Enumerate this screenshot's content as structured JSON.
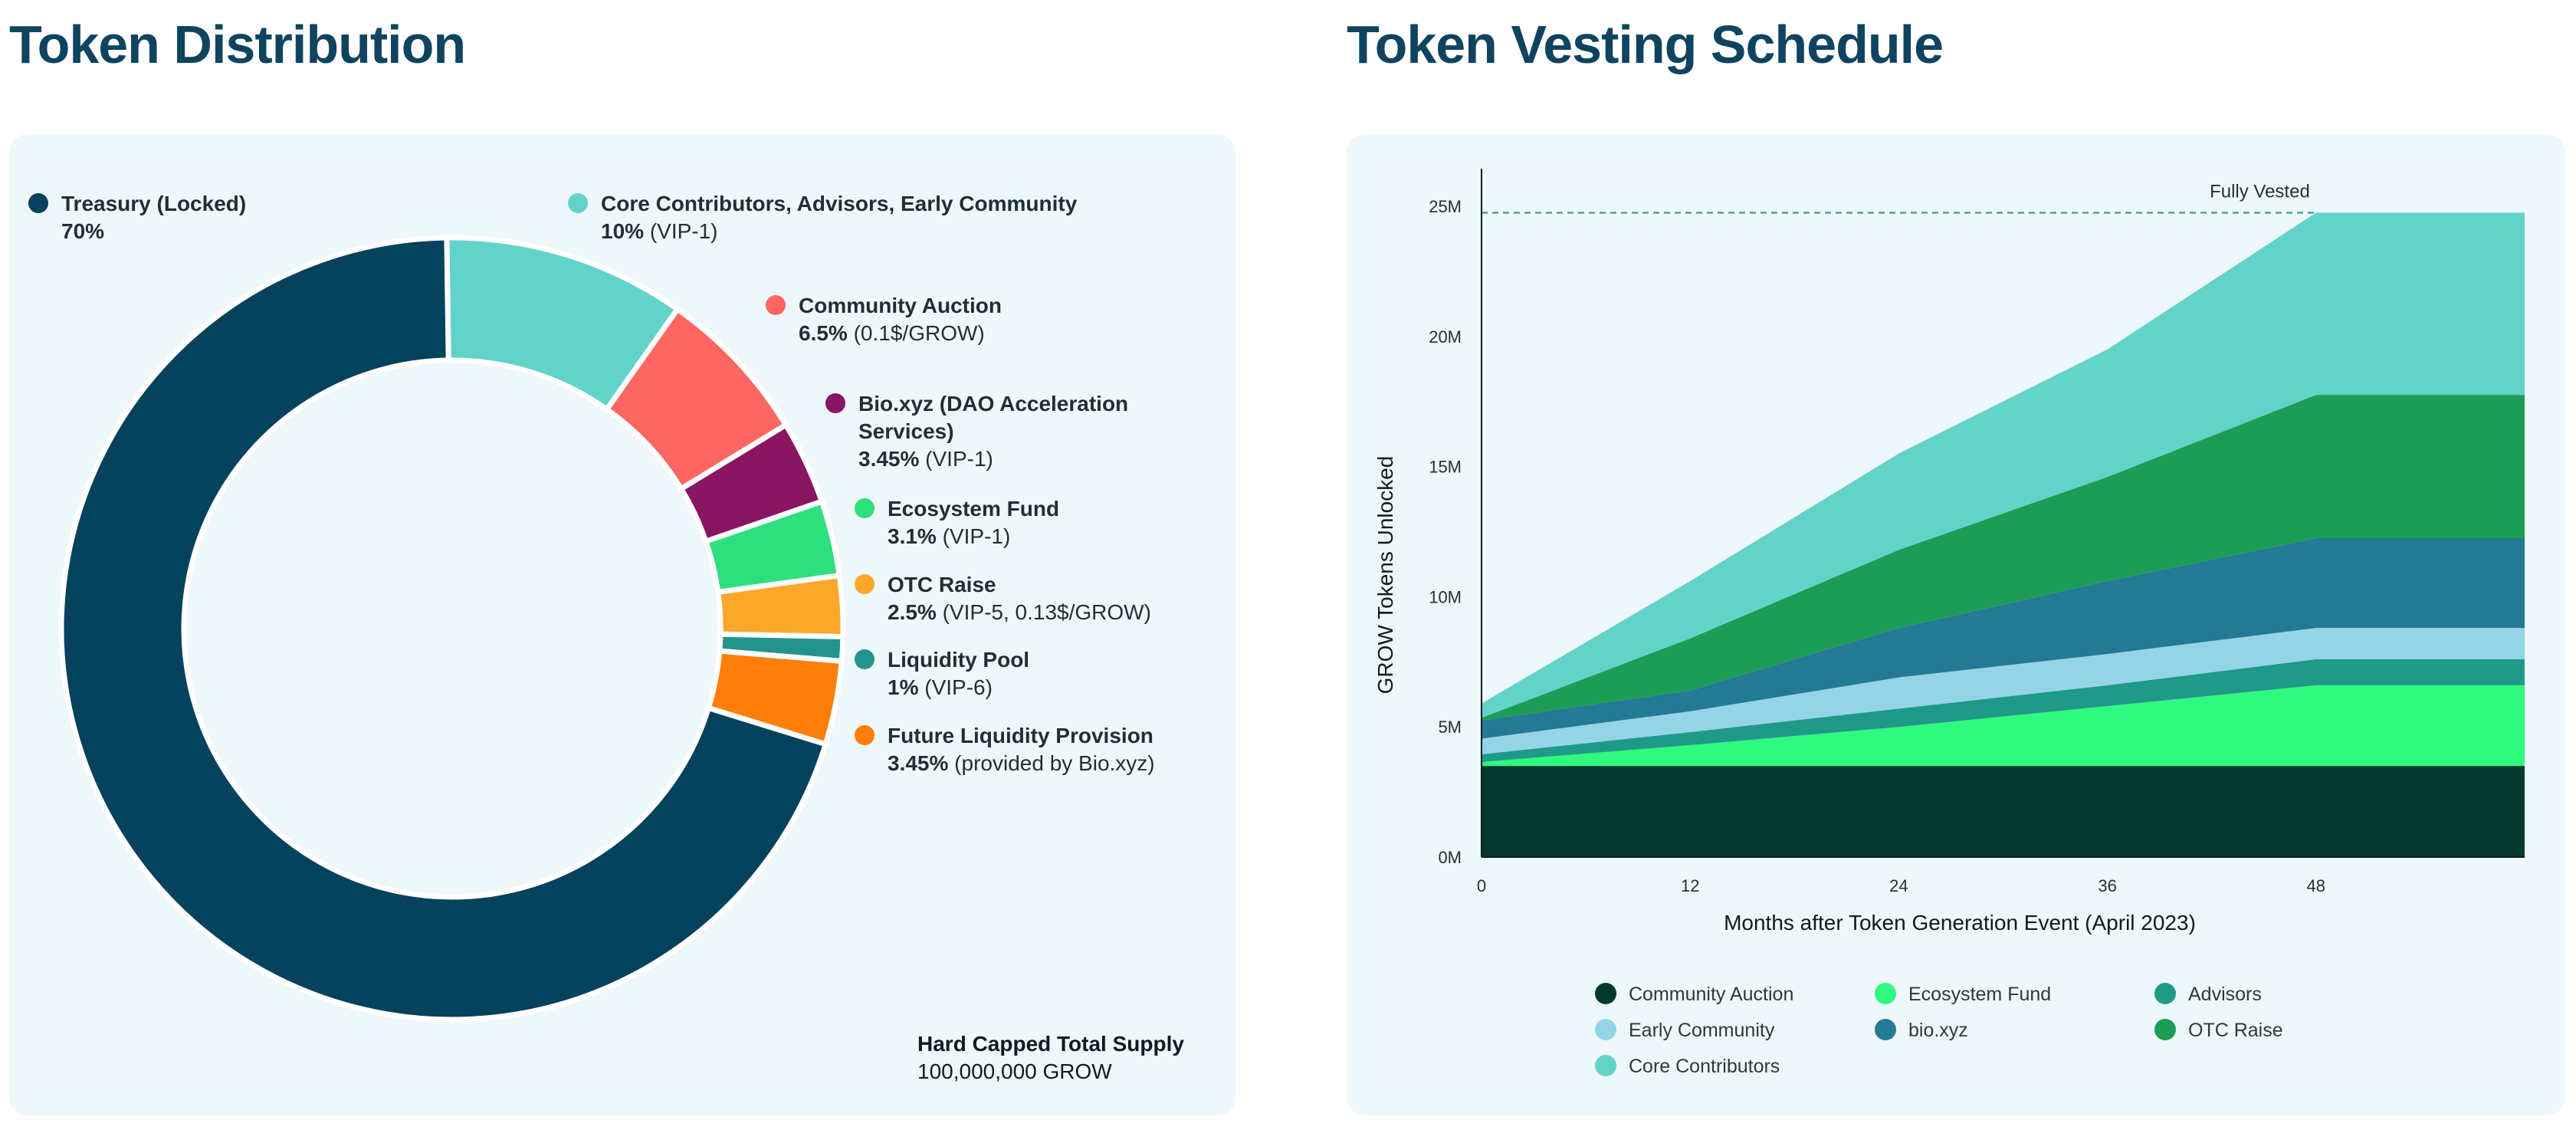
{
  "left_title": "Token Distribution",
  "right_title": "Token Vesting Schedule",
  "supply": {
    "label": "Hard Capped Total Supply",
    "value": "100,000,000 GROW"
  },
  "chart_data": [
    {
      "type": "pie",
      "title": "Token Distribution",
      "slices": [
        {
          "name": "Treasury (Locked)",
          "value": 70,
          "pct": "70%",
          "note": "",
          "color": "#04425d"
        },
        {
          "name": "Core Contributors, Advisors, Early Community",
          "value": 10,
          "pct": "10%",
          "note": "(VIP-1)",
          "color": "#62d3c9"
        },
        {
          "name": "Community Auction",
          "value": 6.5,
          "pct": "6.5%",
          "note": "(0.1$/GROW)",
          "color": "#fe6662"
        },
        {
          "name": "Bio.xyz (DAO Acceleration Services)",
          "value": 3.45,
          "pct": "3.45%",
          "note": "(VIP-1)",
          "color": "#891563"
        },
        {
          "name": "Ecosystem Fund",
          "value": 3.1,
          "pct": "3.1%",
          "note": "(VIP-1)",
          "color": "#2edf7d"
        },
        {
          "name": "OTC Raise",
          "value": 2.5,
          "pct": "2.5%",
          "note": "(VIP-5, 0.13$/GROW)",
          "color": "#fba72a"
        },
        {
          "name": "Liquidity Pool",
          "value": 1,
          "pct": "1%",
          "note": "(VIP-6)",
          "color": "#22948d"
        },
        {
          "name": "Future Liquidity Provision",
          "value": 3.45,
          "pct": "3.45%",
          "note": "(provided by Bio.xyz)",
          "color": "#ff7e0a"
        }
      ]
    },
    {
      "type": "area",
      "title": "Token Vesting Schedule",
      "xlabel": "Months after Token Generation Event (April 2023)",
      "ylabel": "GROW Tokens Unlocked",
      "x": [
        0,
        12,
        24,
        36,
        48,
        60
      ],
      "xticks": [
        "0",
        "12",
        "24",
        "36",
        "48"
      ],
      "yticks": [
        "0M",
        "5M",
        "10M",
        "15M",
        "20M",
        "25M"
      ],
      "ylim": [
        0,
        26
      ],
      "xlim": [
        0,
        60
      ],
      "stacked": true,
      "annotation": "Fully Vested",
      "series": [
        {
          "name": "Community Auction",
          "color": "#03382c",
          "values": [
            3.5,
            3.5,
            3.5,
            3.5,
            3.5,
            3.5
          ]
        },
        {
          "name": "Ecosystem Fund",
          "color": "#2ff97e",
          "values": [
            0.15,
            0.8,
            1.5,
            2.3,
            3.1,
            3.1
          ]
        },
        {
          "name": "Advisors",
          "color": "#1f9a89",
          "values": [
            0.3,
            0.5,
            0.7,
            0.8,
            1.0,
            1.0
          ]
        },
        {
          "name": "Early Community",
          "color": "#94d4e6",
          "values": [
            0.6,
            0.8,
            1.2,
            1.2,
            1.2,
            1.2
          ]
        },
        {
          "name": "bio.xyz",
          "color": "#247a95",
          "values": [
            0.7,
            0.8,
            1.9,
            2.8,
            3.45,
            3.45
          ]
        },
        {
          "name": "OTC Raise",
          "color": "#1c9d56",
          "values": [
            0.1,
            2.0,
            3.0,
            4.0,
            5.5,
            5.5
          ]
        },
        {
          "name": "Core Contributors",
          "color": "#62d3c9",
          "values": [
            0.55,
            2.2,
            3.7,
            4.9,
            7.0,
            7.0
          ]
        }
      ]
    }
  ]
}
